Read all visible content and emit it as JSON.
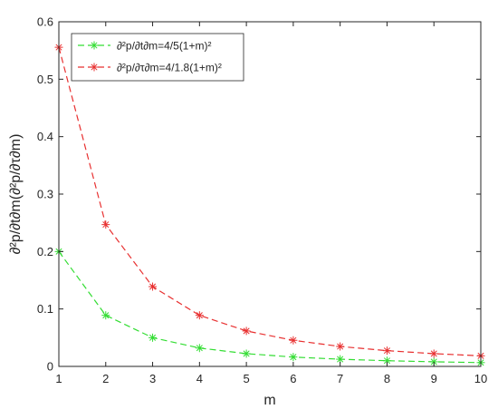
{
  "chart_data": {
    "type": "line",
    "x": [
      1,
      2,
      3,
      4,
      5,
      6,
      7,
      8,
      9,
      10
    ],
    "series": [
      {
        "name": "∂²p/∂t∂m=4/5(1+m)²",
        "values": [
          0.2,
          0.0889,
          0.05,
          0.032,
          0.0222,
          0.0163,
          0.0125,
          0.0099,
          0.008,
          0.0066
        ],
        "color": "#33dd33",
        "line_style": "dashed",
        "marker": "asterisk"
      },
      {
        "name": "∂²p/∂τ∂m=4/1.8(1+m)²",
        "values": [
          0.5556,
          0.2469,
          0.1389,
          0.0889,
          0.0617,
          0.0454,
          0.0347,
          0.0274,
          0.0222,
          0.0184
        ],
        "color": "#e83030",
        "line_style": "dashed",
        "marker": "asterisk"
      }
    ],
    "xlabel": "m",
    "ylabel": "∂²p/∂t∂m(∂²p/∂τ∂m)",
    "xlim": [
      1,
      10
    ],
    "ylim": [
      0,
      0.6
    ],
    "xticks": [
      "1",
      "2",
      "3",
      "4",
      "5",
      "6",
      "7",
      "8",
      "9",
      "10"
    ],
    "yticks": [
      "0",
      "0.1",
      "0.2",
      "0.3",
      "0.4",
      "0.5",
      "0.6"
    ],
    "grid": false,
    "legend_position": "top-left"
  }
}
